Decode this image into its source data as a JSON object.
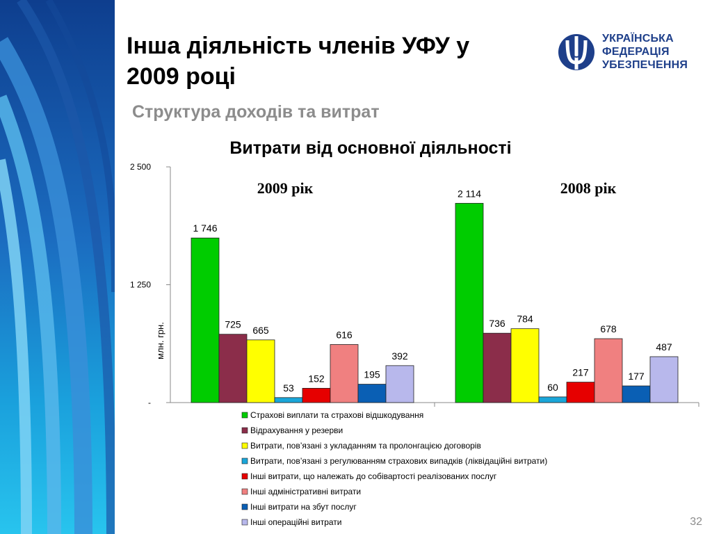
{
  "slide": {
    "title_line1": "Інша діяльність членів УФУ у",
    "title_line2": "2009 році",
    "subtitle": "Структура доходів та витрат",
    "page_number": "32"
  },
  "logo": {
    "line1": "УКРАЇНСЬКА",
    "line2": "ФЕДЕРАЦІЯ",
    "line3": "УБЕЗПЕЧЕННЯ",
    "color": "#1e3f8a"
  },
  "chart_data": {
    "type": "bar",
    "title": "Витрати від основної діяльності",
    "ylabel": "млн. грн.",
    "ylim": [
      0,
      2500
    ],
    "yticks": [
      {
        "value": 0,
        "label": "-"
      },
      {
        "value": 1250,
        "label": "1 250"
      },
      {
        "value": 2500,
        "label": "2 500"
      }
    ],
    "groups": [
      "2009 рік",
      "2008 рік"
    ],
    "series": [
      {
        "name": "Страхові виплати та страхові відшкодування",
        "color": "#00cc00",
        "values": [
          1746,
          2114
        ],
        "labels": [
          "1 746",
          "2 114"
        ]
      },
      {
        "name": "Відрахування у резерви",
        "color": "#8b2d4a",
        "values": [
          725,
          736
        ],
        "labels": [
          "725",
          "736"
        ]
      },
      {
        "name": "Витрати, пов’язані з укладанням та пролонгацією договорів",
        "color": "#ffff00",
        "values": [
          665,
          784
        ],
        "labels": [
          "665",
          "784"
        ]
      },
      {
        "name": "Витрати, пов’язані з регулюванням страхових випадків (ліквідаційні витрати)",
        "color": "#1aa6d9",
        "values": [
          53,
          60
        ],
        "labels": [
          "53",
          "60"
        ]
      },
      {
        "name": "Інші витрати, що належать до собівартості реалізованих послуг",
        "color": "#e60000",
        "values": [
          152,
          217
        ],
        "labels": [
          "152",
          "217"
        ]
      },
      {
        "name": "Інші адміністративні витрати",
        "color": "#f08080",
        "values": [
          616,
          678
        ],
        "labels": [
          "616",
          "678"
        ]
      },
      {
        "name": "Інші витрати на збут послуг",
        "color": "#0a5fb4",
        "values": [
          195,
          177
        ],
        "labels": [
          "195",
          "177"
        ]
      },
      {
        "name": "Інші операційні витрати",
        "color": "#b8b8ec",
        "values": [
          392,
          487
        ],
        "labels": [
          "392",
          "487"
        ]
      }
    ],
    "legend_position": "bottom",
    "grid": false
  }
}
